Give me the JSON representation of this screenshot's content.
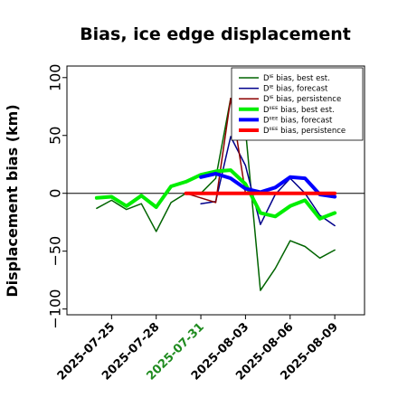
{
  "chart_data": {
    "type": "line",
    "title": "Bias, ice edge displacement",
    "xlabel": "",
    "ylabel": "Displacement bias (km)",
    "xlim": [
      "2025-07-22",
      "2025-08-11"
    ],
    "ylim": [
      -105,
      110
    ],
    "yticks": [
      -100,
      -50,
      0,
      50,
      100
    ],
    "ytick_labels": [
      "−100",
      "−50",
      "0",
      "50",
      "100"
    ],
    "xticks": [
      "2025-07-25",
      "2025-07-28",
      "2025-07-31",
      "2025-08-03",
      "2025-08-06",
      "2025-08-09"
    ],
    "xtick_labels": [
      "2025-07-25",
      "2025-07-28",
      "2025-07-31",
      "2025-08-03",
      "2025-08-06",
      "2025-08-09"
    ],
    "xtick_colors": [
      "#000000",
      "#000000",
      "#1f8b1f",
      "#000000",
      "#000000",
      "#000000"
    ],
    "grid": false,
    "legend_position": "top-right",
    "zero_line": true,
    "series": [
      {
        "name": "Dᴵᴱ bias, best est.",
        "color": "#006400",
        "width": 1.5,
        "x": [
          "2025-07-24",
          "2025-07-25",
          "2025-07-26",
          "2025-07-27",
          "2025-07-28",
          "2025-07-29",
          "2025-07-30",
          "2025-07-31",
          "2025-08-01",
          "2025-08-02",
          "2025-08-03",
          "2025-08-04",
          "2025-08-05",
          "2025-08-06",
          "2025-08-07",
          "2025-08-08",
          "2025-08-09"
        ],
        "y": [
          -13,
          -6,
          -14,
          -9,
          -33,
          -8,
          0,
          0,
          13,
          82,
          55,
          -84,
          -65,
          -41,
          -46,
          -56,
          -49
        ]
      },
      {
        "name": "Dᴵᴱ bias, forecast",
        "color": "#00008b",
        "width": 1.5,
        "x": [
          "2025-07-31",
          "2025-08-01",
          "2025-08-02",
          "2025-08-03",
          "2025-08-04",
          "2025-08-05",
          "2025-08-06",
          "2025-08-07",
          "2025-08-08",
          "2025-08-09"
        ],
        "y": [
          -9,
          -7,
          49,
          24,
          -27,
          -1,
          13,
          0,
          -19,
          -28
        ]
      },
      {
        "name": "Dᴵᴱ bias, persistence",
        "color": "#8b0000",
        "width": 1.5,
        "x": [
          "2025-07-30",
          "2025-07-31",
          "2025-08-01",
          "2025-08-02",
          "2025-08-03"
        ],
        "y": [
          0,
          -4,
          -8,
          82,
          0
        ]
      },
      {
        "name": "Dᴵᴵᴱᴱ bias, best est.",
        "color": "#00ee00",
        "width": 4,
        "x": [
          "2025-07-24",
          "2025-07-25",
          "2025-07-26",
          "2025-07-27",
          "2025-07-28",
          "2025-07-29",
          "2025-07-30",
          "2025-07-31",
          "2025-08-01",
          "2025-08-02",
          "2025-08-03",
          "2025-08-04",
          "2025-08-05",
          "2025-08-06",
          "2025-08-07",
          "2025-08-08",
          "2025-08-09"
        ],
        "y": [
          -4,
          -3,
          -11,
          -2,
          -12,
          6,
          10,
          16,
          19,
          20,
          8,
          -17,
          -20,
          -11,
          -6,
          -22,
          -17
        ]
      },
      {
        "name": "Dᴵᴵᴱᴱ bias, forecast",
        "color": "#0000ff",
        "width": 4,
        "x": [
          "2025-07-31",
          "2025-08-01",
          "2025-08-02",
          "2025-08-03",
          "2025-08-04",
          "2025-08-05",
          "2025-08-06",
          "2025-08-07",
          "2025-08-08",
          "2025-08-09"
        ],
        "y": [
          14,
          17,
          13,
          4,
          1,
          5,
          14,
          13,
          -1,
          -3
        ]
      },
      {
        "name": "Dᴵᴵᴱᴱ bias, persistence",
        "color": "#ff0000",
        "width": 4,
        "x": [
          "2025-07-30",
          "2025-07-31",
          "2025-08-01",
          "2025-08-02",
          "2025-08-03",
          "2025-08-04",
          "2025-08-05",
          "2025-08-06",
          "2025-08-07",
          "2025-08-08",
          "2025-08-09"
        ],
        "y": [
          0,
          0,
          0,
          0,
          0,
          0,
          0,
          0,
          0,
          0,
          0
        ]
      }
    ]
  }
}
